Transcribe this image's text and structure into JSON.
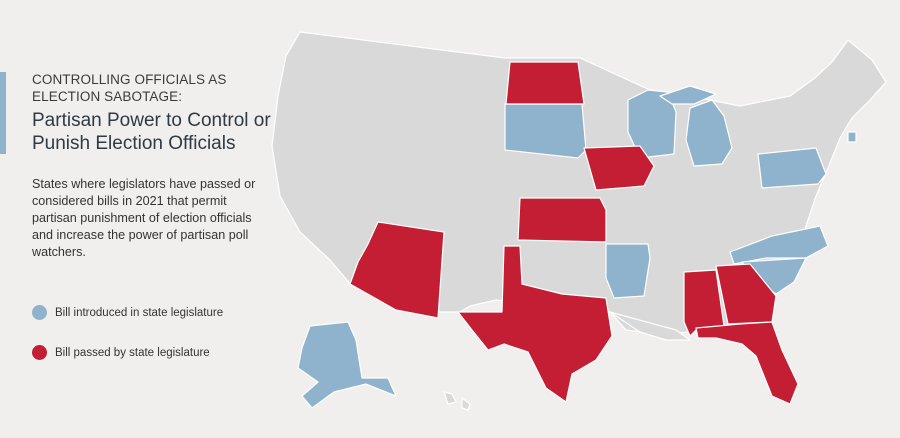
{
  "header": {
    "eyebrow": "CONTROLLING OFFICIALS AS ELECTION SABOTAGE:",
    "title": "Partisan Power to Control or Punish Election Officials",
    "description": "States where legislators have passed or considered bills in 2021 that permit partisan punishment of election officials and increase the power of partisan poll watchers."
  },
  "legend": [
    {
      "label": "Bill introduced in state legislature",
      "color": "#8fb3cc"
    },
    {
      "label": "Bill passed by state legislature",
      "color": "#c41e35"
    }
  ],
  "colors": {
    "background": "#f1efee",
    "neutral_state": "#d9d9d9",
    "introduced": "#8fb3cc",
    "passed": "#c41e35"
  },
  "map": {
    "passed_states": [
      "North Dakota",
      "Iowa",
      "Kansas",
      "Arizona",
      "Texas",
      "Alabama",
      "Georgia",
      "Florida"
    ],
    "introduced_states": [
      "South Dakota",
      "Wisconsin",
      "Michigan",
      "Arkansas",
      "North Carolina",
      "South Carolina",
      "Pennsylvania",
      "Rhode Island",
      "Alaska"
    ]
  }
}
